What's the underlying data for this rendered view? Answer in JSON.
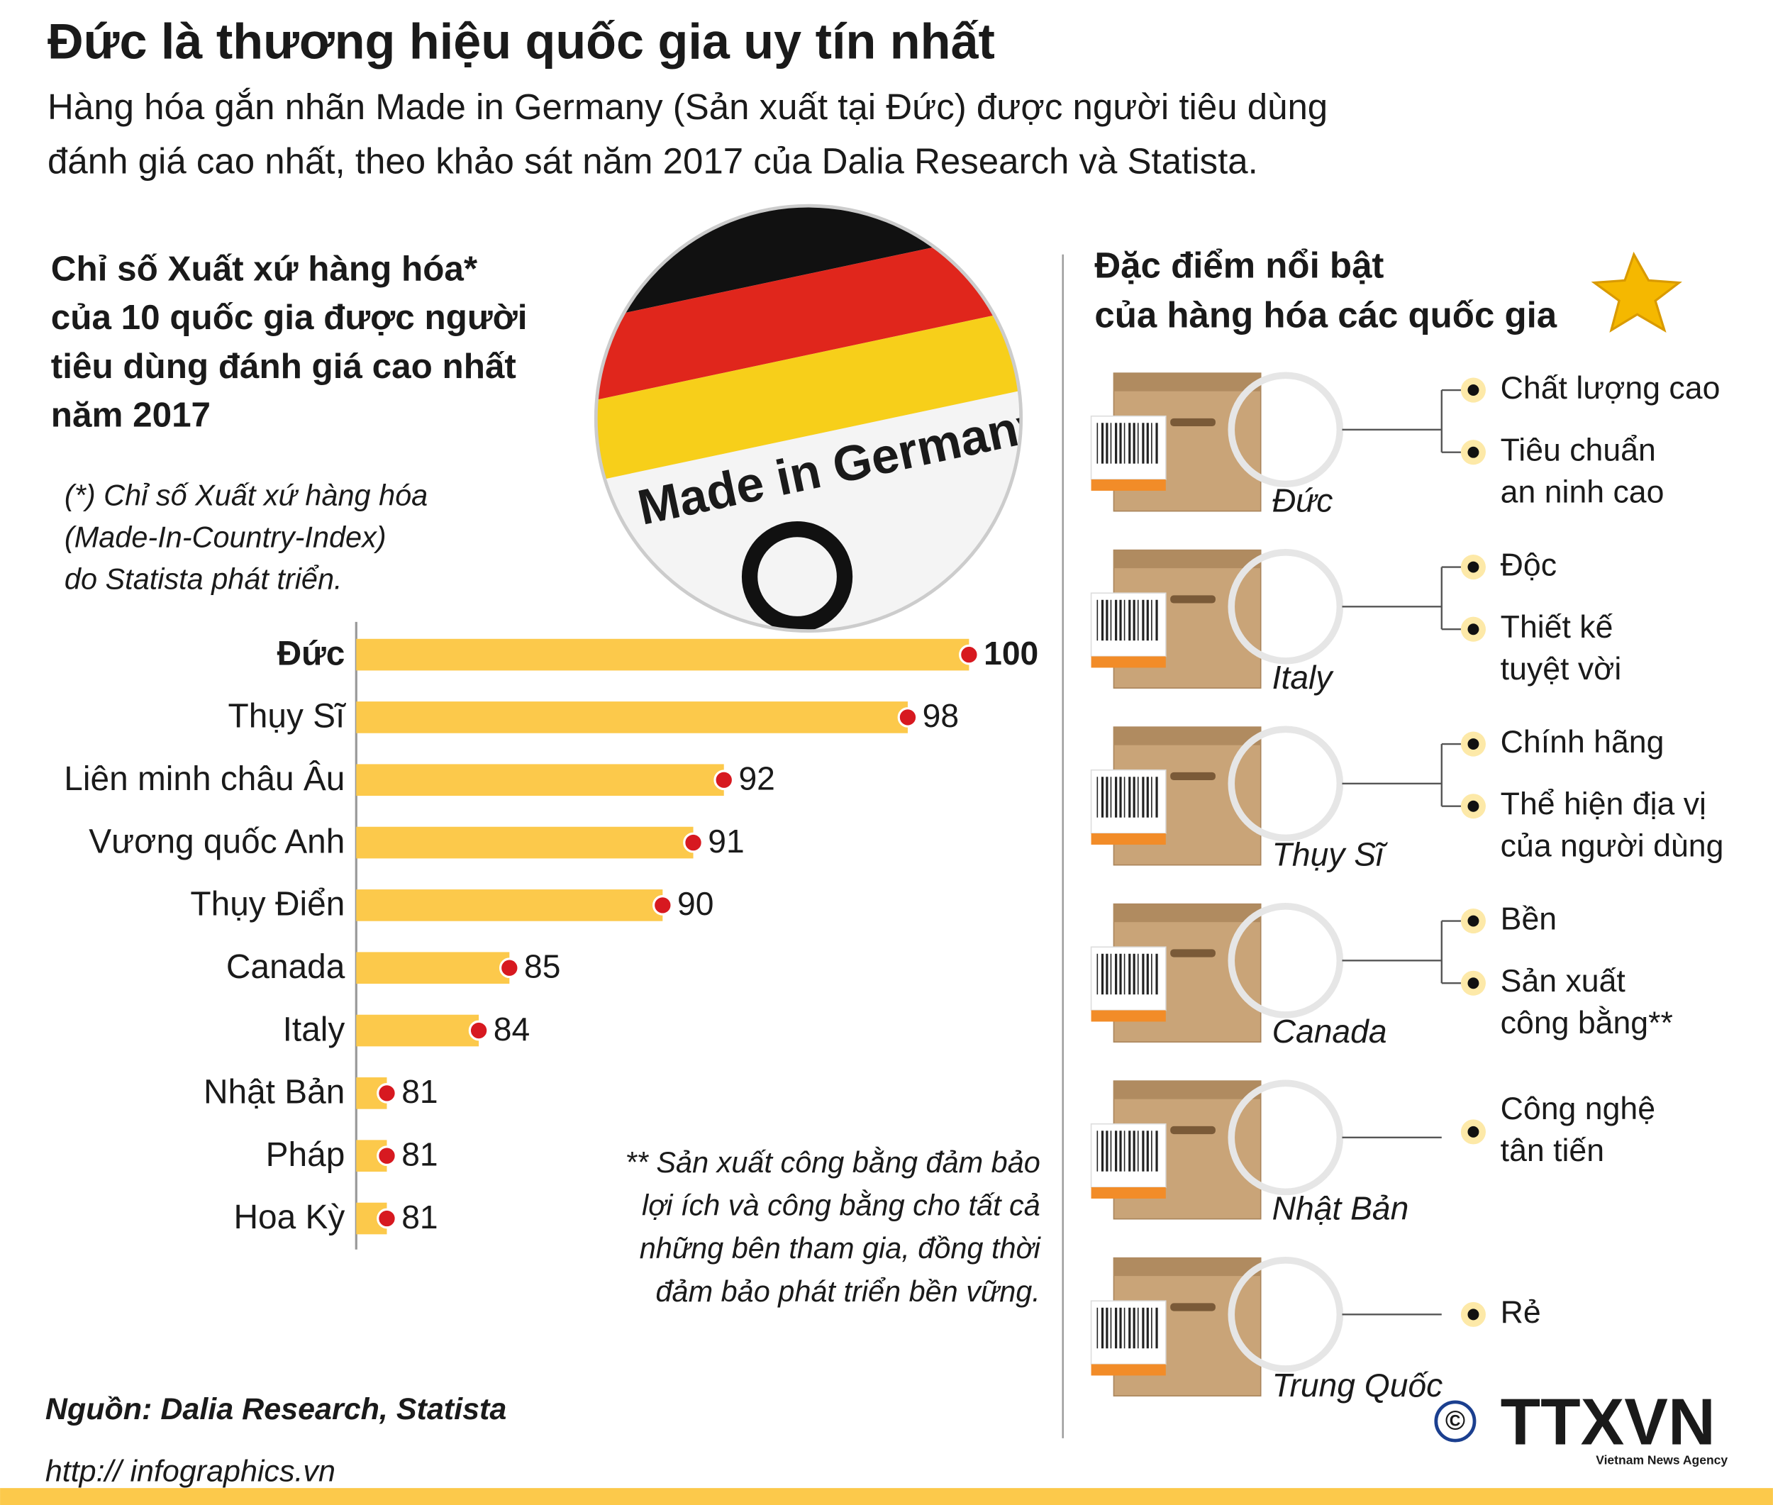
{
  "title": "Đức là thương hiệu quốc gia uy tín nhất",
  "subtitle": [
    "Hàng hóa gắn nhãn Made in Germany (Sản xuất tại Đức) được người tiêu dùng",
    "đánh giá cao nhất, theo khảo sát năm 2017 của Dalia Research và Statista."
  ],
  "photo_label": "Made in Germany",
  "chart_data": {
    "type": "bar",
    "title": [
      "Chỉ số Xuất xứ hàng hóa*",
      "của 10 quốc gia được người",
      "tiêu dùng đánh giá cao nhất",
      "năm 2017"
    ],
    "note": [
      "(*) Chỉ số Xuất xứ hàng hóa",
      "(Made-In-Country-Index)",
      "do Statista phát triển."
    ],
    "categories": [
      "Đức",
      "Thụy Sĩ",
      "Liên minh châu Âu",
      "Vương quốc Anh",
      "Thụy Điển",
      "Canada",
      "Italy",
      "Nhật Bản",
      "Pháp",
      "Hoa Kỳ"
    ],
    "values": [
      100,
      98,
      92,
      91,
      90,
      85,
      84,
      81,
      81,
      81
    ],
    "color": "#fcc94b",
    "marker_color": "#d71920",
    "xlim": [
      80,
      100
    ]
  },
  "footnote": [
    "** Sản xuất công bằng đảm bảo",
    "lợi ích và công bằng cho tất cả",
    "những bên tham gia,  đồng thời",
    "đảm bảo phát triển bền vững."
  ],
  "source": "Nguồn: Dalia Research, Statista",
  "website": "http:// infographics.vn",
  "right_panel": {
    "title": [
      "Đặc điểm nổi bật",
      "của hàng hóa các quốc gia"
    ],
    "countries": [
      {
        "name": "Đức",
        "features": [
          [
            "Chất lượng cao"
          ],
          [
            "Tiêu chuẩn",
            "an ninh cao"
          ]
        ]
      },
      {
        "name": "Italy",
        "features": [
          [
            "Độc"
          ],
          [
            "Thiết kế",
            "tuyệt vời"
          ]
        ]
      },
      {
        "name": "Thụy Sĩ",
        "features": [
          [
            "Chính hãng"
          ],
          [
            "Thể hiện địa vị",
            "của người dùng"
          ]
        ]
      },
      {
        "name": "Canada",
        "features": [
          [
            "Bền"
          ],
          [
            "Sản xuất",
            "công bằng**"
          ]
        ]
      },
      {
        "name": "Nhật Bản",
        "features": [
          [
            "Công nghệ",
            "tân tiến"
          ]
        ]
      },
      {
        "name": "Trung Quốc",
        "features": [
          [
            "Rẻ"
          ]
        ]
      }
    ]
  },
  "logo": {
    "copyright": "©",
    "name": "TTXVN",
    "tagline": "Vietnam News Agency"
  }
}
